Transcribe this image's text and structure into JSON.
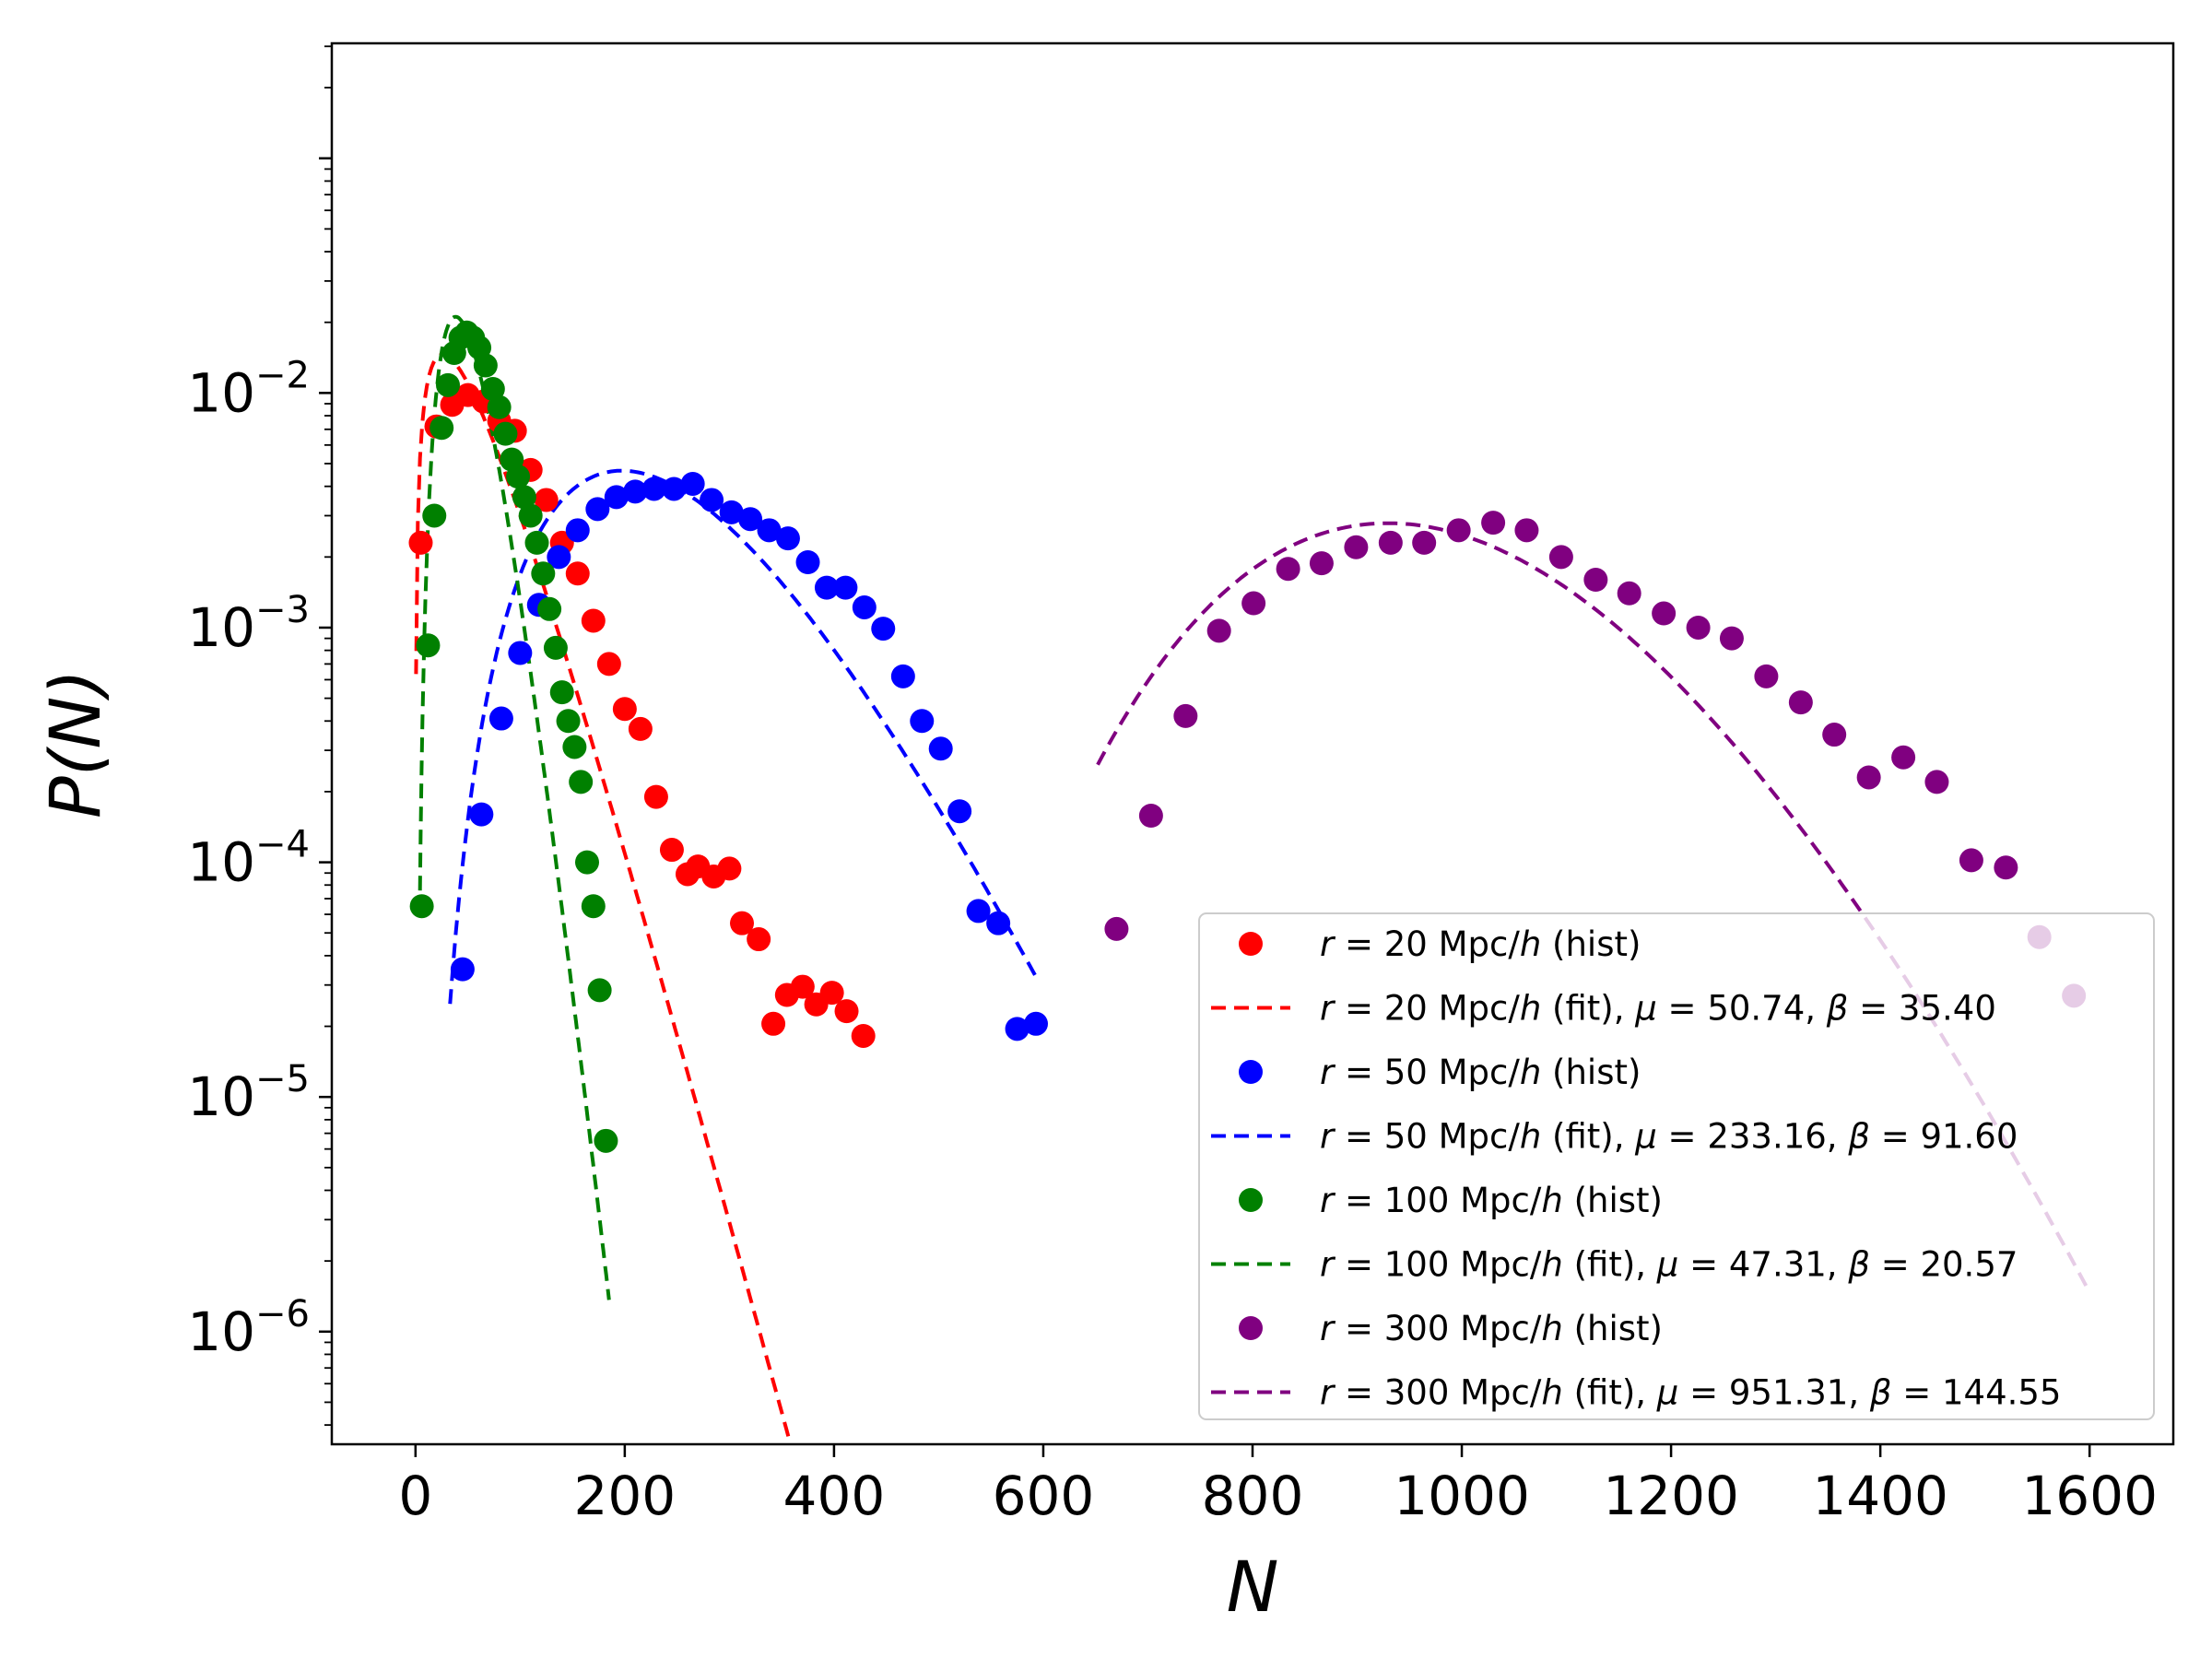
{
  "chart_data": {
    "type": "scatter",
    "xlabel": "N",
    "ylabel": "P(N)",
    "xlim": [
      -80,
      1680
    ],
    "ylim_log10": [
      -6.48,
      -0.51
    ],
    "x_ticks": [
      0,
      200,
      400,
      600,
      800,
      1000,
      1200,
      1400,
      1600
    ],
    "x_tick_labels": [
      "0",
      "200",
      "400",
      "600",
      "800",
      "1000",
      "1200",
      "1400",
      "1600"
    ],
    "y_ticks_log10": [
      -6,
      -5,
      -4,
      -3,
      -2
    ],
    "y_tick_labels": [
      {
        "base": "10",
        "exp": "−6"
      },
      {
        "base": "10",
        "exp": "−5"
      },
      {
        "base": "10",
        "exp": "−4"
      },
      {
        "base": "10",
        "exp": "−3"
      },
      {
        "base": "10",
        "exp": "−2"
      }
    ],
    "legend_position": "lower-right",
    "series": [
      {
        "name": "r = 20 Mpc/h",
        "color": "#ff0000",
        "hist_label": {
          "r": "20",
          "suffix": " (hist)"
        },
        "fit_label": {
          "r": "20",
          "suffix": " (fit),",
          "mu": "50.74",
          "beta": "35.40"
        },
        "fit": {
          "mu": 50.74,
          "beta": 35.4,
          "xmin": 0,
          "xmax": 432
        },
        "hist_x": [
          5,
          20,
          35,
          50,
          65,
          80,
          95,
          110,
          125,
          140,
          155,
          170,
          185,
          200,
          215,
          230,
          245,
          260,
          270,
          285,
          300,
          312,
          328,
          342,
          355,
          370,
          383,
          398,
          412,
          428
        ],
        "hist_y": [
          0.0023,
          0.0072,
          0.0089,
          0.0098,
          0.0092,
          0.0076,
          0.0069,
          0.0047,
          0.0035,
          0.0023,
          0.0017,
          0.00107,
          0.0007,
          0.00045,
          0.00037,
          0.00019,
          0.000113,
          8.9e-05,
          9.6e-05,
          8.7e-05,
          9.4e-05,
          5.5e-05,
          4.7e-05,
          2.05e-05,
          2.72e-05,
          2.95e-05,
          2.48e-05,
          2.78e-05,
          2.32e-05,
          1.82e-05
        ]
      },
      {
        "name": "r = 50 Mpc/h",
        "color": "#0000ff",
        "hist_label": {
          "r": "50",
          "suffix": " (hist)"
        },
        "fit_label": {
          "r": "50",
          "suffix": " (fit),",
          "mu": "233.16",
          "beta": "91.60"
        },
        "fit": {
          "mu": 233.16,
          "beta": 91.6,
          "xmin": 33,
          "xmax": 593
        },
        "hist_x": [
          45,
          63,
          82,
          100,
          118,
          137,
          155,
          174,
          192,
          210,
          228,
          247,
          265,
          283,
          302,
          320,
          338,
          356,
          375,
          393,
          411,
          429,
          447,
          466,
          484,
          502,
          520,
          538,
          557,
          575,
          593
        ],
        "hist_y": [
          3.5e-05,
          0.00016,
          0.00041,
          0.00078,
          0.00125,
          0.002,
          0.0026,
          0.0032,
          0.0036,
          0.0038,
          0.0039,
          0.0039,
          0.0041,
          0.0035,
          0.0031,
          0.0029,
          0.0026,
          0.0024,
          0.0019,
          0.00148,
          0.00148,
          0.00122,
          0.00099,
          0.00062,
          0.0004,
          0.000305,
          0.000165,
          6.2e-05,
          5.5e-05,
          1.95e-05,
          2.05e-05
        ]
      },
      {
        "name": "r = 100 Mpc/h",
        "color": "#008000",
        "hist_label": {
          "r": "100",
          "suffix": " (hist)"
        },
        "fit_label": {
          "r": "100",
          "suffix": " (fit),",
          "mu": "47.31",
          "beta": "20.57"
        },
        "fit": {
          "mu": 47.31,
          "beta": 20.57,
          "xmin": 4,
          "xmax": 185
        },
        "hist_x": [
          6,
          12,
          18,
          25,
          31,
          37,
          43,
          49,
          55,
          61,
          67,
          74,
          80,
          86,
          92,
          98,
          104,
          110,
          116,
          122,
          128,
          134,
          140,
          146,
          152,
          158,
          164,
          170,
          176,
          182
        ],
        "hist_y": [
          6.5e-05,
          0.00084,
          0.003,
          0.0071,
          0.0108,
          0.0148,
          0.0172,
          0.0181,
          0.0172,
          0.0156,
          0.0131,
          0.0104,
          0.0087,
          0.0067,
          0.0052,
          0.0044,
          0.0036,
          0.003,
          0.0023,
          0.0017,
          0.0012,
          0.00082,
          0.00053,
          0.0004,
          0.00031,
          0.00022,
          0.0001,
          6.5e-05,
          2.85e-05,
          6.5e-06
        ]
      },
      {
        "name": "r = 300 Mpc/h",
        "color": "#800080",
        "hist_label": {
          "r": "300",
          "suffix": " (hist)"
        },
        "fit_label": {
          "r": "300",
          "suffix": " (fit),",
          "mu": "951.31",
          "beta": "144.55"
        },
        "fit": {
          "mu": 951.31,
          "beta": 144.55,
          "xmin": 652,
          "xmax": 1600
        },
        "hist_x": [
          670,
          703,
          736,
          768,
          801,
          834,
          866,
          899,
          932,
          964,
          997,
          1030,
          1062,
          1095,
          1128,
          1160,
          1193,
          1226,
          1258,
          1291,
          1324,
          1356,
          1389,
          1422,
          1454,
          1487,
          1520,
          1552,
          1585
        ],
        "hist_y": [
          5.2e-05,
          0.000158,
          0.00042,
          0.00097,
          0.00127,
          0.00178,
          0.00188,
          0.0022,
          0.0023,
          0.0023,
          0.0026,
          0.0028,
          0.0026,
          0.002,
          0.0016,
          0.0014,
          0.00115,
          0.001,
          0.0009,
          0.00062,
          0.00048,
          0.00035,
          0.00023,
          0.00028,
          0.00022,
          0.000102,
          9.5e-05,
          4.8e-05,
          2.7e-05
        ]
      }
    ]
  }
}
